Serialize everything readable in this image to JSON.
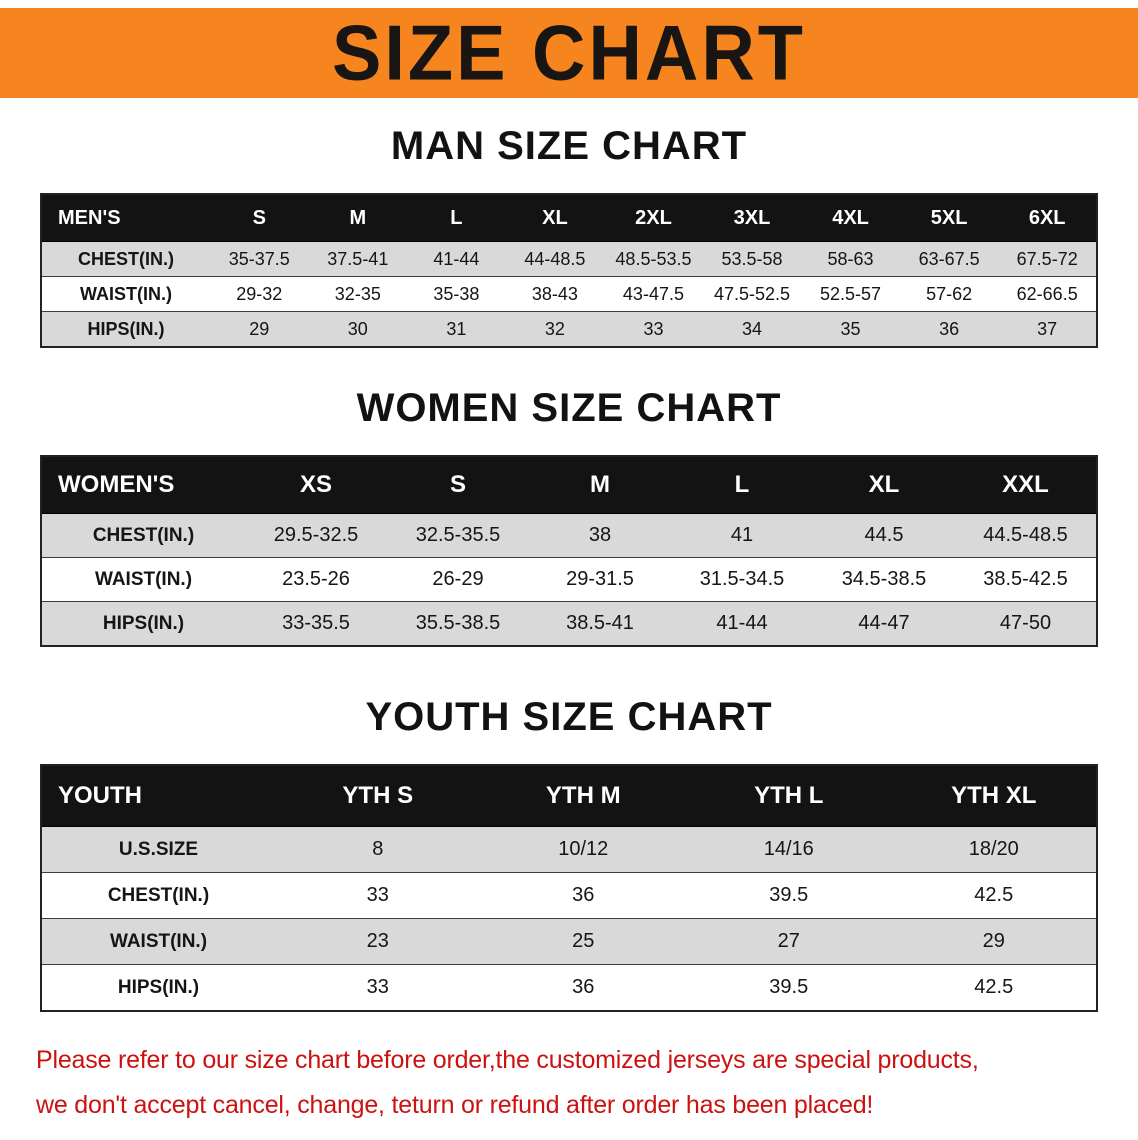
{
  "banner": {
    "title": "SIZE CHART",
    "bg_color": "#f6851f",
    "text_color": "#181512"
  },
  "sections": [
    {
      "heading": "MAN SIZE CHART",
      "table": {
        "header": [
          "MEN'S",
          "S",
          "M",
          "L",
          "XL",
          "2XL",
          "3XL",
          "4XL",
          "5XL",
          "6XL"
        ],
        "rows": [
          {
            "label": "CHEST(IN.)",
            "values": [
              "35-37.5",
              "37.5-41",
              "41-44",
              "44-48.5",
              "48.5-53.5",
              "53.5-58",
              "58-63",
              "63-67.5",
              "67.5-72"
            ]
          },
          {
            "label": "WAIST(IN.)",
            "values": [
              "29-32",
              "32-35",
              "35-38",
              "38-43",
              "43-47.5",
              "47.5-52.5",
              "52.5-57",
              "57-62",
              "62-66.5"
            ]
          },
          {
            "label": "HIPS(IN.)",
            "values": [
              "29",
              "30",
              "31",
              "32",
              "33",
              "34",
              "35",
              "36",
              "37"
            ]
          }
        ]
      }
    },
    {
      "heading": "WOMEN SIZE CHART",
      "table": {
        "header": [
          "WOMEN'S",
          "XS",
          "S",
          "M",
          "L",
          "XL",
          "XXL"
        ],
        "rows": [
          {
            "label": "CHEST(IN.)",
            "values": [
              "29.5-32.5",
              "32.5-35.5",
              "38",
              "41",
              "44.5",
              "44.5-48.5"
            ]
          },
          {
            "label": "WAIST(IN.)",
            "values": [
              "23.5-26",
              "26-29",
              "29-31.5",
              "31.5-34.5",
              "34.5-38.5",
              "38.5-42.5"
            ]
          },
          {
            "label": "HIPS(IN.)",
            "values": [
              "33-35.5",
              "35.5-38.5",
              "38.5-41",
              "41-44",
              "44-47",
              "47-50"
            ]
          }
        ]
      }
    },
    {
      "heading": "YOUTH SIZE CHART",
      "table": {
        "header": [
          "YOUTH",
          "YTH S",
          "YTH M",
          "YTH L",
          "YTH XL"
        ],
        "rows": [
          {
            "label": "U.S.SIZE",
            "values": [
              "8",
              "10/12",
              "14/16",
              "18/20"
            ]
          },
          {
            "label": "CHEST(IN.)",
            "values": [
              "33",
              "36",
              "39.5",
              "42.5"
            ]
          },
          {
            "label": "WAIST(IN.)",
            "values": [
              "23",
              "25",
              "27",
              "29"
            ]
          },
          {
            "label": "HIPS(IN.)",
            "values": [
              "33",
              "36",
              "39.5",
              "42.5"
            ]
          }
        ]
      }
    }
  ],
  "disclaimer": {
    "color": "#cc1111",
    "lines": [
      "Please refer to our size chart before order,the customized jerseys are special products,",
      "we don't accept cancel, change, teturn or refund after order has been placed!"
    ]
  }
}
